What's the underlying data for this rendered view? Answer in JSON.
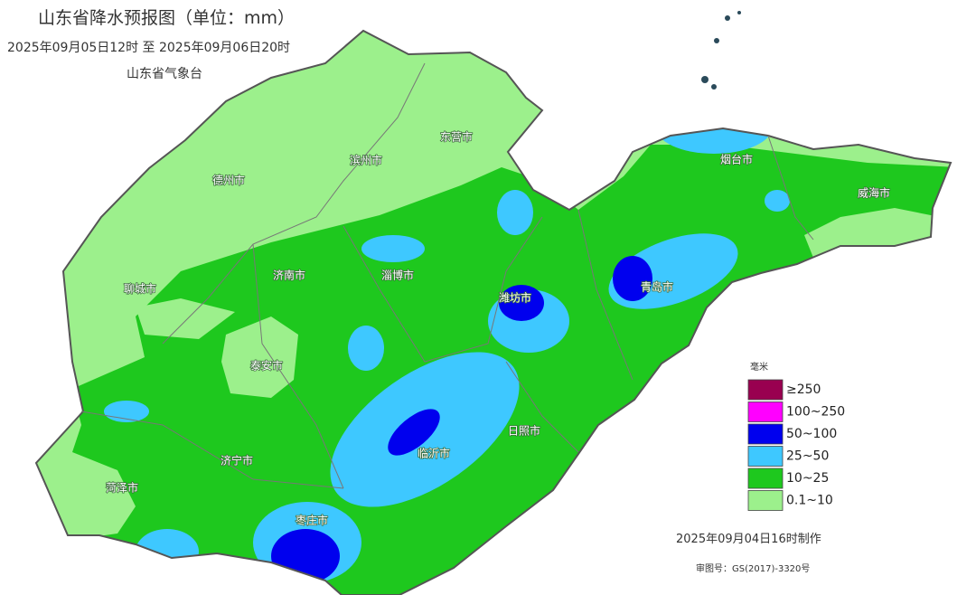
{
  "header": {
    "title": "山东省降水预报图（单位：mm）",
    "period": "2025年09月05日12时  至  2025年09月06日20时",
    "agency": "山东省气象台"
  },
  "cities": [
    {
      "label": "德州市"
    },
    {
      "label": "滨州市"
    },
    {
      "label": "东营市"
    },
    {
      "label": "烟台市"
    },
    {
      "label": "威海市"
    },
    {
      "label": "聊城市"
    },
    {
      "label": "济南市"
    },
    {
      "label": "淄博市"
    },
    {
      "label": "潍坊市"
    },
    {
      "label": "青岛市"
    },
    {
      "label": "泰安市"
    },
    {
      "label": "日照市"
    },
    {
      "label": "临沂市"
    },
    {
      "label": "济宁市"
    },
    {
      "label": "菏泽市"
    },
    {
      "label": "枣庄市"
    }
  ],
  "legend": {
    "title": "毫米",
    "items": [
      {
        "label": "≥250",
        "color": "#990050"
      },
      {
        "label": "100~250",
        "color": "#ff00ff"
      },
      {
        "label": "50~100",
        "color": "#0000ee"
      },
      {
        "label": "25~50",
        "color": "#3ec8ff"
      },
      {
        "label": "10~25",
        "color": "#1ec81e"
      },
      {
        "label": "0.1~10",
        "color": "#9cf08c"
      }
    ]
  },
  "footer": {
    "made": "2025年09月04日16时制作",
    "approval": "审图号：GS(2017)-3320号"
  }
}
